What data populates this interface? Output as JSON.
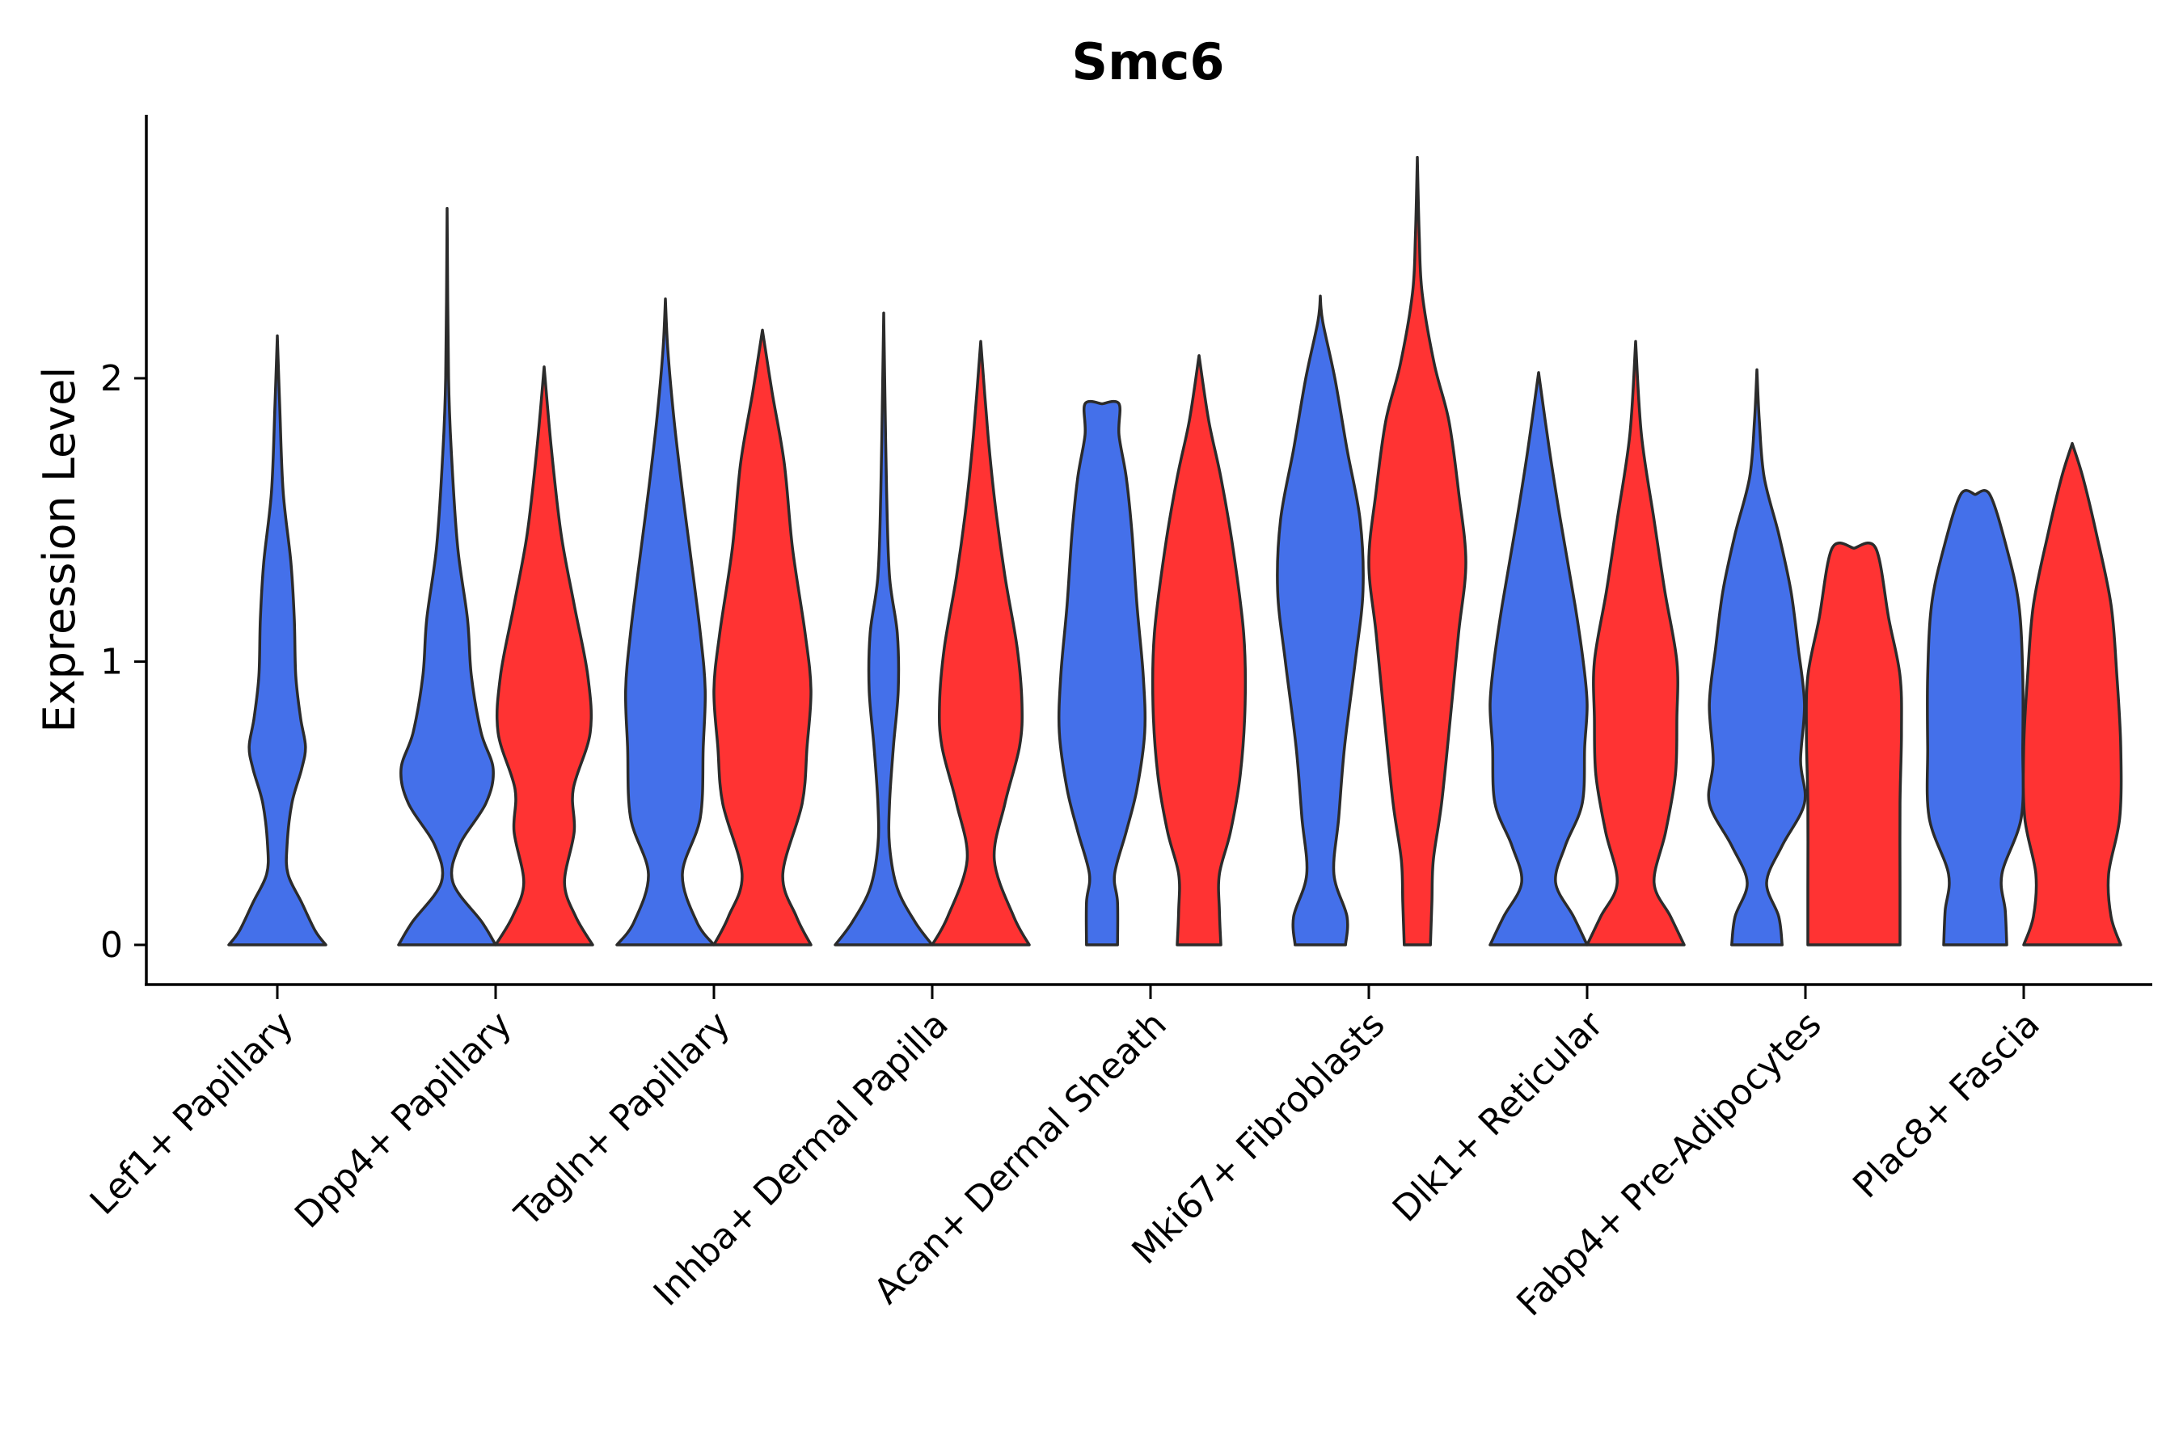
{
  "chart_data": {
    "type": "violin",
    "title": "Smc6",
    "ylabel": "Expression Level",
    "xlabel": "",
    "ylim": [
      -0.14,
      2.93
    ],
    "yticks": [
      0,
      1,
      2
    ],
    "colors": {
      "series_a": "#4470ea",
      "series_b": "#ff3333",
      "outline": "#2b2b2b"
    },
    "categories": [
      "Lef1+ Papillary",
      "Dpp4+ Papillary",
      "Tagln+ Papillary",
      "Inhba+ Dermal Papilla",
      "Acan+ Dermal Sheath",
      "Mki67+ Fibroblasts",
      "Dlk1+ Reticular",
      "Fabp4+ Pre-Adipocytes",
      "Plac8+ Fascia"
    ],
    "series": [
      {
        "name": "series_a",
        "color": "#4470ea",
        "violins": [
          {
            "category": "Lef1+ Papillary",
            "max": 2.15,
            "profile": [
              [
                0,
                1.0
              ],
              [
                0.05,
                0.78
              ],
              [
                0.15,
                0.5
              ],
              [
                0.25,
                0.22
              ],
              [
                0.35,
                0.2
              ],
              [
                0.5,
                0.3
              ],
              [
                0.62,
                0.5
              ],
              [
                0.7,
                0.58
              ],
              [
                0.8,
                0.48
              ],
              [
                0.95,
                0.38
              ],
              [
                1.15,
                0.35
              ],
              [
                1.35,
                0.28
              ],
              [
                1.6,
                0.12
              ],
              [
                1.9,
                0.05
              ],
              [
                2.15,
                0.0
              ]
            ]
          },
          {
            "category": "Dpp4+ Papillary",
            "max": 2.6,
            "profile": [
              [
                0,
                1.0
              ],
              [
                0.08,
                0.72
              ],
              [
                0.22,
                0.12
              ],
              [
                0.35,
                0.25
              ],
              [
                0.5,
                0.8
              ],
              [
                0.62,
                0.95
              ],
              [
                0.75,
                0.7
              ],
              [
                0.95,
                0.5
              ],
              [
                1.15,
                0.42
              ],
              [
                1.4,
                0.22
              ],
              [
                1.7,
                0.1
              ],
              [
                2.0,
                0.03
              ],
              [
                2.6,
                0.0
              ]
            ]
          },
          {
            "category": "Tagln+ Papillary",
            "max": 2.28,
            "profile": [
              [
                0,
                1.0
              ],
              [
                0.08,
                0.65
              ],
              [
                0.25,
                0.35
              ],
              [
                0.45,
                0.72
              ],
              [
                0.7,
                0.78
              ],
              [
                0.9,
                0.82
              ],
              [
                1.1,
                0.72
              ],
              [
                1.4,
                0.5
              ],
              [
                1.6,
                0.35
              ],
              [
                1.85,
                0.18
              ],
              [
                2.1,
                0.05
              ],
              [
                2.28,
                0.0
              ]
            ]
          },
          {
            "category": "Inhba+ Dermal Papilla",
            "max": 2.23,
            "profile": [
              [
                0,
                1.0
              ],
              [
                0.08,
                0.65
              ],
              [
                0.2,
                0.28
              ],
              [
                0.35,
                0.12
              ],
              [
                0.5,
                0.12
              ],
              [
                0.7,
                0.2
              ],
              [
                0.9,
                0.3
              ],
              [
                1.1,
                0.28
              ],
              [
                1.3,
                0.12
              ],
              [
                1.6,
                0.06
              ],
              [
                2.0,
                0.02
              ],
              [
                2.23,
                0.0
              ]
            ]
          },
          {
            "category": "Acan+ Dermal Sheath",
            "max": 1.91,
            "profile": [
              [
                0,
                0.32
              ],
              [
                0.15,
                0.32
              ],
              [
                0.25,
                0.26
              ],
              [
                0.4,
                0.5
              ],
              [
                0.55,
                0.72
              ],
              [
                0.75,
                0.88
              ],
              [
                0.95,
                0.85
              ],
              [
                1.2,
                0.72
              ],
              [
                1.45,
                0.62
              ],
              [
                1.65,
                0.5
              ],
              [
                1.8,
                0.35
              ],
              [
                1.91,
                0.35
              ],
              [
                1.91,
                0.0
              ]
            ]
          },
          {
            "category": "Mki67+ Fibroblasts",
            "max": 2.29,
            "profile": [
              [
                0,
                0.52
              ],
              [
                0.1,
                0.55
              ],
              [
                0.25,
                0.28
              ],
              [
                0.45,
                0.38
              ],
              [
                0.7,
                0.5
              ],
              [
                1.0,
                0.72
              ],
              [
                1.25,
                0.88
              ],
              [
                1.5,
                0.82
              ],
              [
                1.75,
                0.55
              ],
              [
                2.0,
                0.3
              ],
              [
                2.2,
                0.05
              ],
              [
                2.29,
                0.0
              ]
            ]
          },
          {
            "category": "Dlk1+ Reticular",
            "max": 2.02,
            "profile": [
              [
                0,
                1.0
              ],
              [
                0.1,
                0.72
              ],
              [
                0.22,
                0.35
              ],
              [
                0.35,
                0.55
              ],
              [
                0.5,
                0.9
              ],
              [
                0.7,
                0.95
              ],
              [
                0.85,
                1.0
              ],
              [
                1.0,
                0.92
              ],
              [
                1.2,
                0.75
              ],
              [
                1.5,
                0.45
              ],
              [
                1.75,
                0.22
              ],
              [
                2.02,
                0.0
              ]
            ]
          },
          {
            "category": "Fabp4+ Pre-Adipocytes",
            "max": 2.03,
            "profile": [
              [
                0,
                0.52
              ],
              [
                0.1,
                0.45
              ],
              [
                0.22,
                0.2
              ],
              [
                0.35,
                0.52
              ],
              [
                0.5,
                0.98
              ],
              [
                0.65,
                0.9
              ],
              [
                0.85,
                0.98
              ],
              [
                1.05,
                0.85
              ],
              [
                1.25,
                0.7
              ],
              [
                1.45,
                0.45
              ],
              [
                1.65,
                0.15
              ],
              [
                1.85,
                0.05
              ],
              [
                2.03,
                0.0
              ]
            ]
          },
          {
            "category": "Plac8+ Fascia",
            "max": 1.59,
            "profile": [
              [
                0,
                0.65
              ],
              [
                0.12,
                0.62
              ],
              [
                0.25,
                0.55
              ],
              [
                0.45,
                0.95
              ],
              [
                0.7,
                0.98
              ],
              [
                0.95,
                0.98
              ],
              [
                1.2,
                0.9
              ],
              [
                1.4,
                0.65
              ],
              [
                1.59,
                0.3
              ],
              [
                1.59,
                0.0
              ]
            ]
          }
        ]
      },
      {
        "name": "series_b",
        "color": "#ff3333",
        "violins": [
          {
            "category": "Dpp4+ Papillary",
            "max": 2.04,
            "profile": [
              [
                0,
                1.0
              ],
              [
                0.1,
                0.65
              ],
              [
                0.22,
                0.42
              ],
              [
                0.4,
                0.62
              ],
              [
                0.55,
                0.6
              ],
              [
                0.75,
                0.95
              ],
              [
                0.95,
                0.9
              ],
              [
                1.2,
                0.62
              ],
              [
                1.45,
                0.35
              ],
              [
                1.75,
                0.15
              ],
              [
                2.04,
                0.0
              ]
            ]
          },
          {
            "category": "Tagln+ Papillary",
            "max": 2.17,
            "profile": [
              [
                0,
                1.0
              ],
              [
                0.1,
                0.7
              ],
              [
                0.25,
                0.42
              ],
              [
                0.5,
                0.82
              ],
              [
                0.7,
                0.92
              ],
              [
                0.9,
                1.0
              ],
              [
                1.1,
                0.88
              ],
              [
                1.4,
                0.62
              ],
              [
                1.7,
                0.45
              ],
              [
                1.95,
                0.2
              ],
              [
                2.17,
                0.0
              ]
            ]
          },
          {
            "category": "Inhba+ Dermal Papilla",
            "max": 2.13,
            "profile": [
              [
                0,
                1.0
              ],
              [
                0.1,
                0.68
              ],
              [
                0.3,
                0.28
              ],
              [
                0.5,
                0.5
              ],
              [
                0.7,
                0.8
              ],
              [
                0.85,
                0.85
              ],
              [
                1.05,
                0.75
              ],
              [
                1.3,
                0.5
              ],
              [
                1.55,
                0.3
              ],
              [
                1.8,
                0.15
              ],
              [
                2.13,
                0.0
              ]
            ]
          },
          {
            "category": "Acan+ Dermal Sheath",
            "max": 2.08,
            "profile": [
              [
                0,
                0.45
              ],
              [
                0.12,
                0.42
              ],
              [
                0.25,
                0.42
              ],
              [
                0.4,
                0.65
              ],
              [
                0.6,
                0.85
              ],
              [
                0.85,
                0.95
              ],
              [
                1.1,
                0.92
              ],
              [
                1.4,
                0.7
              ],
              [
                1.65,
                0.45
              ],
              [
                1.85,
                0.2
              ],
              [
                2.08,
                0.0
              ]
            ]
          },
          {
            "category": "Mki67+ Fibroblasts",
            "max": 2.78,
            "profile": [
              [
                0,
                0.27
              ],
              [
                0.15,
                0.3
              ],
              [
                0.3,
                0.33
              ],
              [
                0.5,
                0.5
              ],
              [
                0.8,
                0.68
              ],
              [
                1.1,
                0.85
              ],
              [
                1.35,
                1.0
              ],
              [
                1.6,
                0.85
              ],
              [
                1.85,
                0.65
              ],
              [
                2.05,
                0.35
              ],
              [
                2.3,
                0.1
              ],
              [
                2.5,
                0.04
              ],
              [
                2.78,
                0.0
              ]
            ]
          },
          {
            "category": "Dlk1+ Reticular",
            "max": 2.13,
            "profile": [
              [
                0,
                1.0
              ],
              [
                0.1,
                0.72
              ],
              [
                0.22,
                0.38
              ],
              [
                0.4,
                0.62
              ],
              [
                0.6,
                0.82
              ],
              [
                0.8,
                0.85
              ],
              [
                1.0,
                0.85
              ],
              [
                1.25,
                0.6
              ],
              [
                1.5,
                0.38
              ],
              [
                1.8,
                0.12
              ],
              [
                2.13,
                0.0
              ]
            ]
          },
          {
            "category": "Fabp4+ Pre-Adipocytes",
            "max": 1.4,
            "profile": [
              [
                0,
                0.95
              ],
              [
                0.2,
                0.95
              ],
              [
                0.5,
                0.95
              ],
              [
                0.75,
                0.98
              ],
              [
                0.95,
                0.95
              ],
              [
                1.15,
                0.72
              ],
              [
                1.4,
                0.45
              ],
              [
                1.4,
                0.0
              ]
            ]
          },
          {
            "category": "Plac8+ Fascia",
            "max": 1.77,
            "profile": [
              [
                0,
                1.0
              ],
              [
                0.1,
                0.8
              ],
              [
                0.25,
                0.75
              ],
              [
                0.45,
                0.98
              ],
              [
                0.7,
                1.0
              ],
              [
                0.95,
                0.92
              ],
              [
                1.2,
                0.8
              ],
              [
                1.45,
                0.5
              ],
              [
                1.65,
                0.22
              ],
              [
                1.77,
                0.0
              ]
            ]
          }
        ]
      }
    ]
  }
}
